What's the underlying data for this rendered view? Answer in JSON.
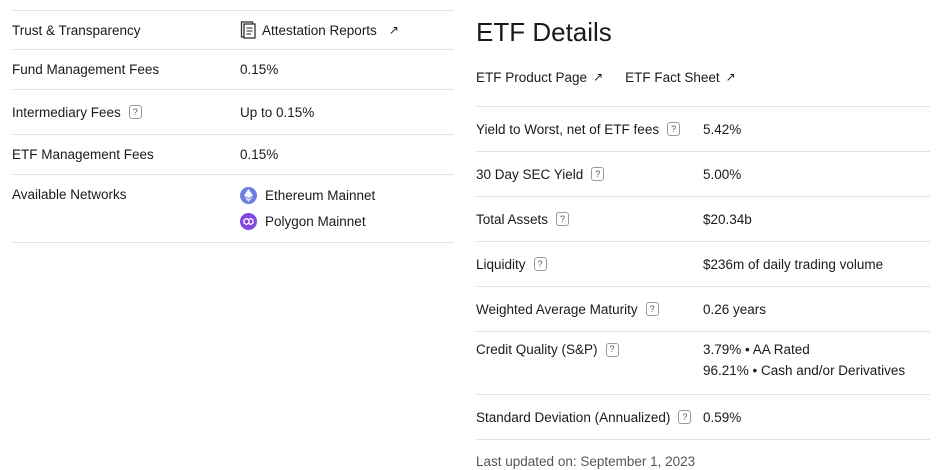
{
  "left_table": {
    "trust_label": "Trust & Transparency",
    "attestation_link": "Attestation Reports",
    "fund_fee_label": "Fund Management Fees",
    "fund_fee_value": "0.15%",
    "intermediary_label": "Intermediary Fees",
    "intermediary_value": "Up to 0.15%",
    "etf_fee_label": "ETF Management Fees",
    "etf_fee_value": "0.15%",
    "networks_label": "Available Networks",
    "networks": [
      "Ethereum Mainnet",
      "Polygon Mainnet"
    ]
  },
  "etf": {
    "title": "ETF Details",
    "product_page_link": "ETF Product Page",
    "fact_sheet_link": "ETF Fact Sheet",
    "rows": [
      {
        "label": "Yield to Worst, net of ETF fees",
        "value": "5.42%"
      },
      {
        "label": "30 Day SEC Yield",
        "value": "5.00%"
      },
      {
        "label": "Total Assets",
        "value": "$20.34b"
      },
      {
        "label": "Liquidity",
        "value": "$236m of daily trading volume"
      },
      {
        "label": "Weighted Average Maturity",
        "value": "0.26 years"
      },
      {
        "label": "Credit Quality (S&P)",
        "value": "3.79% • AA Rated",
        "value2": "96.21% • Cash and/or Derivatives"
      },
      {
        "label": "Standard Deviation (Annualized)",
        "value": "0.59%"
      }
    ],
    "last_updated": "Last updated on: September 1, 2023"
  },
  "icons": {
    "help": "?",
    "arrow": "↗",
    "document_icon": "document-icon",
    "ethereum_icon": "ethereum-icon",
    "polygon_icon": "polygon-icon"
  },
  "colors": {
    "ethereum": "#6c7ee1",
    "polygon": "#8247e5"
  }
}
